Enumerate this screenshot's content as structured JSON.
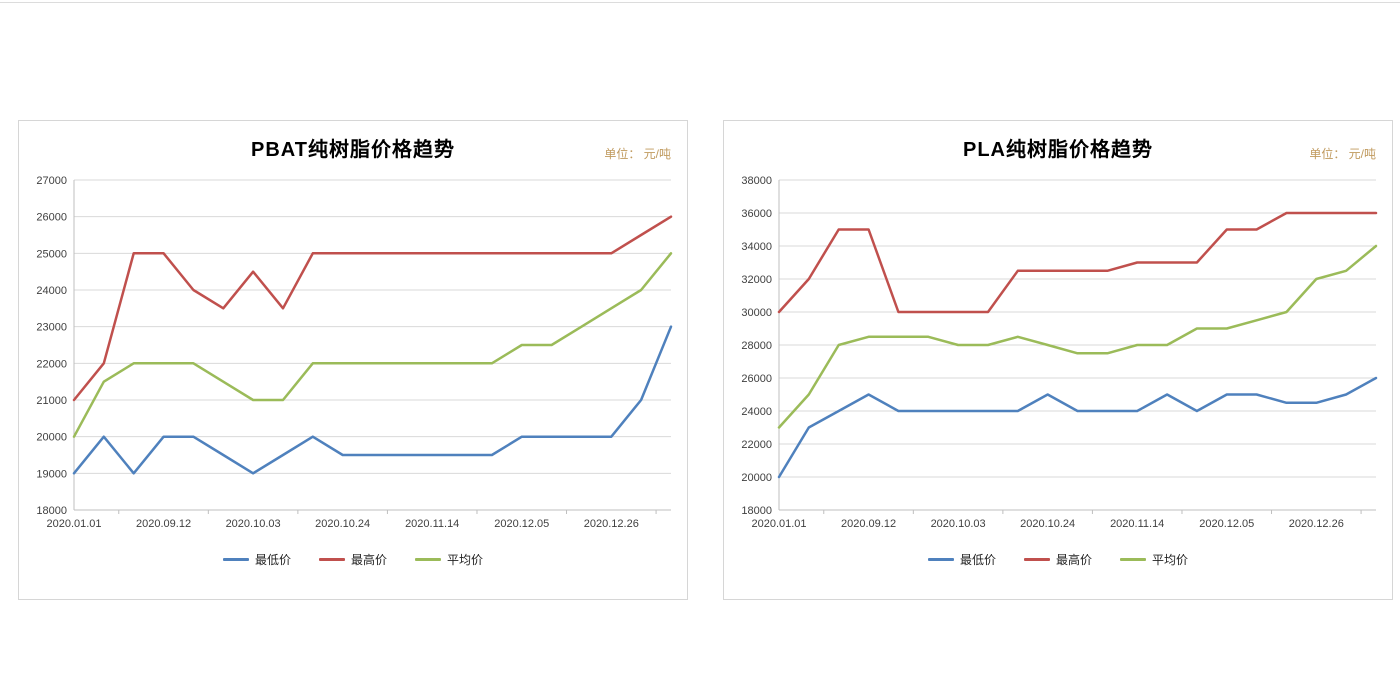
{
  "styles": {
    "grid_color": "#d9d9d9",
    "axis_color": "#bfbfbf",
    "axis_text_color": "#404040",
    "unit_text_color": "#c09a5e",
    "panel_border_color": "#d6d6d6"
  },
  "chart_data": [
    {
      "type": "line",
      "title": "PBAT纯树脂价格趋势",
      "unit_label": "单位：  元/吨",
      "categories": [
        "2020.01.01",
        "2020.09.12",
        "2020.10.03",
        "2020.10.24",
        "2020.11.14",
        "2020.12.05",
        "2020.12.26"
      ],
      "x_tick_indices": [
        0,
        3,
        6,
        9,
        12,
        15,
        18
      ],
      "n_points": 21,
      "ylim": [
        18000,
        27000
      ],
      "y_step": 1000,
      "grid": true,
      "legend_position": "bottom",
      "series": [
        {
          "name": "最低价",
          "color": "#4f81bd",
          "values": [
            19000,
            20000,
            19000,
            20000,
            20000,
            19500,
            19000,
            19500,
            20000,
            19500,
            19500,
            19500,
            19500,
            19500,
            19500,
            20000,
            20000,
            20000,
            20000,
            21000,
            23000
          ]
        },
        {
          "name": "最高价",
          "color": "#c0504d",
          "values": [
            21000,
            22000,
            25000,
            25000,
            24000,
            23500,
            24500,
            23500,
            25000,
            25000,
            25000,
            25000,
            25000,
            25000,
            25000,
            25000,
            25000,
            25000,
            25000,
            25500,
            26000
          ]
        },
        {
          "name": "平均价",
          "color": "#9bbb59",
          "values": [
            20000,
            21500,
            22000,
            22000,
            22000,
            21500,
            21000,
            21000,
            22000,
            22000,
            22000,
            22000,
            22000,
            22000,
            22000,
            22500,
            22500,
            23000,
            23500,
            24000,
            25000
          ]
        }
      ]
    },
    {
      "type": "line",
      "title": "PLA纯树脂价格趋势",
      "unit_label": "单位：  元/吨",
      "categories": [
        "2020.01.01",
        "2020.09.12",
        "2020.10.03",
        "2020.10.24",
        "2020.11.14",
        "2020.12.05",
        "2020.12.26"
      ],
      "x_tick_indices": [
        0,
        3,
        6,
        9,
        12,
        15,
        18
      ],
      "n_points": 21,
      "ylim": [
        18000,
        38000
      ],
      "y_step": 2000,
      "grid": true,
      "legend_position": "bottom",
      "series": [
        {
          "name": "最低价",
          "color": "#4f81bd",
          "values": [
            20000,
            23000,
            24000,
            25000,
            24000,
            24000,
            24000,
            24000,
            24000,
            25000,
            24000,
            24000,
            24000,
            25000,
            24000,
            25000,
            25000,
            24500,
            24500,
            25000,
            26000
          ]
        },
        {
          "name": "最高价",
          "color": "#c0504d",
          "values": [
            30000,
            32000,
            35000,
            35000,
            30000,
            30000,
            30000,
            30000,
            32500,
            32500,
            32500,
            32500,
            33000,
            33000,
            33000,
            35000,
            35000,
            36000,
            36000,
            36000,
            36000
          ]
        },
        {
          "name": "平均价",
          "color": "#9bbb59",
          "values": [
            23000,
            25000,
            28000,
            28500,
            28500,
            28500,
            28000,
            28000,
            28500,
            28000,
            27500,
            27500,
            28000,
            28000,
            29000,
            29000,
            29500,
            30000,
            32000,
            32500,
            34000
          ]
        }
      ]
    }
  ]
}
